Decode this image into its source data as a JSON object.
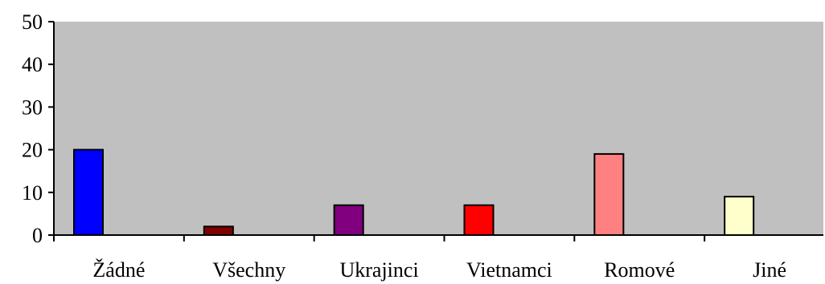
{
  "chart_data": {
    "type": "bar",
    "categories": [
      "Žádné",
      "Všechny",
      "Ukrajinci",
      "Vietnamci",
      "Romové",
      "Jiné"
    ],
    "values": [
      20,
      2,
      7,
      7,
      19,
      9
    ],
    "bar_colors": [
      "#0000ff",
      "#800000",
      "#800080",
      "#ff0000",
      "#ff8080",
      "#ffffcc"
    ],
    "plot_background": "#c0c0c0",
    "ylim": [
      0,
      50
    ],
    "yticks": [
      0,
      10,
      20,
      30,
      40,
      50
    ],
    "grid": false,
    "legend": "none"
  }
}
